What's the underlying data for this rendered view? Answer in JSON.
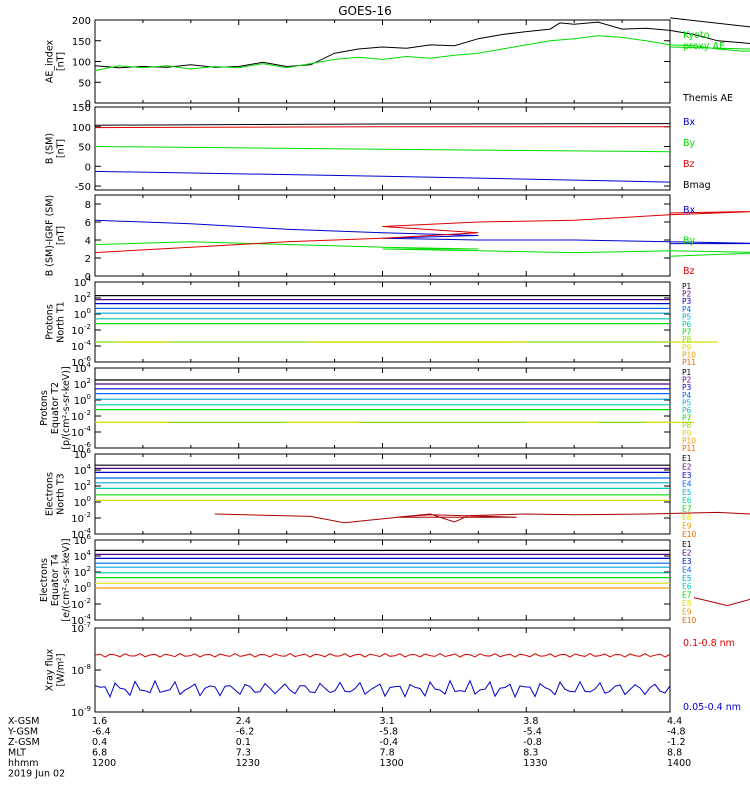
{
  "title": "GOES-16",
  "colors": {
    "black": "#000000",
    "blue": "#0000cc",
    "green": "#00dd00",
    "red": "#dd0000",
    "P": [
      "#000000",
      "#550088",
      "#0000cc",
      "#0066ff",
      "#00aadd",
      "#00ccaa",
      "#00dd00",
      "#88dd00",
      "#dddd00",
      "#ee9900",
      "#ee6600",
      "#dd0000",
      "#aa0000"
    ],
    "E": [
      "#000000",
      "#550088",
      "#0000cc",
      "#0066ff",
      "#00aadd",
      "#00ccaa",
      "#00dd00",
      "#dddd00",
      "#ee9900",
      "#ee6600",
      "#dd0000",
      "#aa0000"
    ]
  },
  "chart_data": [
    {
      "type": "line",
      "ylabel": "AE_index\n[nT]",
      "ylim": [
        0,
        200
      ],
      "yticks": [
        "0",
        "50",
        "100",
        "150",
        "200"
      ],
      "legend": [
        {
          "label": "Kyoto\nproxy AE",
          "color": "#00dd00"
        },
        {
          "label": "Themis AE",
          "color": "#000000"
        }
      ],
      "series": [
        {
          "name": "Themis AE",
          "color": "#000000",
          "x": [
            1200,
            1205,
            1210,
            1215,
            1220,
            1225,
            1230,
            1235,
            1240,
            1245,
            1250,
            1255,
            1300,
            1305,
            1310,
            1315,
            1320,
            1325,
            1330,
            1335,
            1337,
            1340,
            1345,
            1350,
            1355,
            1360,
            1365,
            1370,
            1375,
            1380,
            1385,
            1390,
            1395,
            1400
          ],
          "y": [
            90,
            85,
            88,
            86,
            92,
            86,
            88,
            98,
            88,
            92,
            120,
            130,
            135,
            132,
            140,
            138,
            155,
            165,
            172,
            178,
            193,
            190,
            195,
            178,
            180,
            175,
            165,
            150,
            145,
            140,
            140,
            138,
            160,
            205
          ]
        },
        {
          "name": "Kyoto proxy AE",
          "color": "#00dd00",
          "x": [
            1200,
            1205,
            1210,
            1215,
            1220,
            1225,
            1230,
            1235,
            1240,
            1245,
            1250,
            1255,
            1300,
            1305,
            1310,
            1315,
            1320,
            1325,
            1330,
            1335,
            1340,
            1345,
            1350,
            1355,
            1360,
            1365,
            1370,
            1375,
            1380,
            1385,
            1390,
            1395,
            1400
          ],
          "y": [
            78,
            90,
            85,
            90,
            82,
            88,
            85,
            95,
            85,
            95,
            105,
            110,
            105,
            112,
            108,
            115,
            120,
            130,
            140,
            150,
            155,
            162,
            158,
            150,
            140,
            138,
            130,
            125,
            125,
            125,
            125,
            125,
            135
          ]
        }
      ]
    },
    {
      "type": "line",
      "ylabel": "B (SM)\n[nT]",
      "ylim": [
        -60,
        150
      ],
      "yticks": [
        "-50",
        "0",
        "50",
        "100",
        "150"
      ],
      "legend": [
        {
          "label": "Bx",
          "color": "#0000cc"
        },
        {
          "label": "By",
          "color": "#00dd00"
        },
        {
          "label": "Bz",
          "color": "#dd0000"
        },
        {
          "label": "Bmag",
          "color": "#000000"
        }
      ],
      "series": [
        {
          "name": "Bmag",
          "color": "#000000",
          "x": [
            1200,
            1300,
            1400
          ],
          "y": [
            104,
            107,
            108
          ]
        },
        {
          "name": "Bz",
          "color": "#dd0000",
          "x": [
            1200,
            1300,
            1400
          ],
          "y": [
            98,
            100,
            100
          ]
        },
        {
          "name": "By",
          "color": "#00dd00",
          "x": [
            1200,
            1300,
            1400
          ],
          "y": [
            50,
            43,
            37
          ]
        },
        {
          "name": "Bx",
          "color": "#0000cc",
          "x": [
            1200,
            1300,
            1400
          ],
          "y": [
            -13,
            -25,
            -40
          ]
        }
      ]
    },
    {
      "type": "line",
      "ylabel": "B (SM)-IGRF (SM)\n[nT]",
      "ylim": [
        0,
        9
      ],
      "yticks": [
        "0",
        "2",
        "4",
        "6",
        "8"
      ],
      "legend": [
        {
          "label": "Bx",
          "color": "#0000cc"
        },
        {
          "label": "By",
          "color": "#00dd00"
        },
        {
          "label": "Bz",
          "color": "#dd0000"
        }
      ],
      "series": [
        {
          "name": "Bx",
          "color": "#0000cc",
          "x": [
            1200,
            1220,
            1240,
            1260,
            1280,
            1300,
            1320,
            1340,
            1360,
            1380,
            1400
          ],
          "y": [
            6.2,
            5.8,
            5.2,
            4.8,
            4.5,
            4.2,
            4.0,
            4.0,
            3.8,
            3.6,
            3.6
          ]
        },
        {
          "name": "By",
          "color": "#00dd00",
          "x": [
            1200,
            1220,
            1240,
            1260,
            1280,
            1300,
            1320,
            1340,
            1360,
            1380,
            1400
          ],
          "y": [
            3.5,
            3.8,
            3.5,
            3.2,
            3.0,
            3.0,
            2.8,
            2.6,
            2.8,
            2.6,
            2.2
          ]
        },
        {
          "name": "Bz",
          "color": "#dd0000",
          "x": [
            1200,
            1220,
            1240,
            1260,
            1280,
            1300,
            1320,
            1340,
            1360,
            1380,
            1400
          ],
          "y": [
            2.6,
            3.2,
            3.8,
            4.2,
            4.8,
            5.5,
            6.0,
            6.2,
            6.8,
            7.2,
            7.0
          ]
        }
      ]
    },
    {
      "type": "line",
      "log": true,
      "ylabel": "Protons\nNorth T1",
      "ylim": [
        -6,
        4
      ],
      "ytick_exps": [
        -6,
        -4,
        -2,
        0,
        2,
        4
      ],
      "channels": [
        "P1",
        "P2",
        "P3",
        "P4",
        "P5",
        "P6",
        "P7",
        "P8",
        "P9",
        "P10",
        "P11"
      ],
      "levels": [
        2.3,
        1.8,
        1.3,
        0.7,
        0.1,
        -0.6,
        -1.2,
        -3.5,
        -9,
        -9,
        -9
      ],
      "p8_segments": [
        [
          1205,
          1215
        ],
        [
          1245,
          1285
        ],
        [
          1310,
          1330
        ],
        [
          1360,
          1370
        ]
      ]
    },
    {
      "type": "line",
      "log": true,
      "ylabel": "Protons\nEquator T2\n[p/(cm²-s-sr-keV)]",
      "ylim": [
        -6,
        4
      ],
      "ytick_exps": [
        -6,
        -4,
        -2,
        0,
        2,
        4
      ],
      "channels": [
        "P1",
        "P2",
        "P3",
        "P4",
        "P5",
        "P6",
        "P7",
        "P8",
        "P9",
        "P10",
        "P11"
      ],
      "levels": [
        2.5,
        2.0,
        1.4,
        0.8,
        0.1,
        -0.6,
        -1.2,
        -2.8,
        -9,
        -9,
        -9
      ],
      "p8_segments": [
        [
          1200,
          1215
        ],
        [
          1240,
          1255
        ],
        [
          1260,
          1300
        ],
        [
          1330,
          1345
        ],
        [
          1355,
          1365
        ]
      ]
    },
    {
      "type": "line",
      "log": true,
      "ylabel": "Electrons\nNorth T3",
      "ylim": [
        -4,
        6
      ],
      "ytick_exps": [
        -4,
        -2,
        0,
        2,
        4,
        6
      ],
      "channels": [
        "E1",
        "E2",
        "E3",
        "E4",
        "E5",
        "E6",
        "E7",
        "E8",
        "E9",
        "E10"
      ],
      "levels": [
        4.6,
        4.2,
        3.7,
        3.0,
        2.4,
        1.7,
        0.9,
        0.2,
        -9,
        -9
      ],
      "e9_curve": {
        "x": [
          1225,
          1245,
          1252,
          1265,
          1270,
          1288,
          1303,
          1310,
          1315,
          1318,
          1330,
          1340,
          1355,
          1370,
          1380,
          1395
        ],
        "y": [
          -1.5,
          -1.8,
          -2.6,
          -1.8,
          -1.6,
          -1.9,
          -1.9,
          -1.5,
          -2.5,
          -1.7,
          -1.5,
          -1.6,
          -1.5,
          -1.3,
          -1.6,
          -1.5
        ]
      }
    },
    {
      "type": "line",
      "log": true,
      "ylabel": "Electrons\nEquator T4\n[e/(cm²-s-sr-keV)]",
      "ylim": [
        -4,
        6
      ],
      "ytick_exps": [
        -4,
        -2,
        0,
        2,
        4,
        6
      ],
      "channels": [
        "E1",
        "E2",
        "E3",
        "E4",
        "E5",
        "E6",
        "E7",
        "E8",
        "E9",
        "E10"
      ],
      "levels": [
        4.7,
        4.2,
        3.7,
        3.1,
        2.6,
        1.9,
        1.3,
        0.6,
        0.0,
        -9
      ],
      "e9_curve": {
        "x": [
          1365,
          1372,
          1378,
          1385
        ],
        "y": [
          -1.2,
          -2.2,
          -1.2,
          -1.8
        ]
      }
    },
    {
      "type": "line",
      "log": true,
      "ylabel": "Xray flux\n[W/m²]",
      "ylim": [
        -9,
        -7
      ],
      "ytick_exps": [
        -9,
        -8,
        -7
      ],
      "legend": [
        {
          "label": "0.1-0.8 nm",
          "color": "#dd0000"
        },
        {
          "label": "0.05-0.4 nm",
          "color": "#0000cc"
        }
      ],
      "series": [
        {
          "name": "0.1-0.8 nm",
          "color": "#dd0000",
          "level": -7.65
        },
        {
          "name": "0.05-0.4 nm",
          "color": "#0000cc",
          "level": -8.45
        }
      ]
    }
  ],
  "footer": {
    "rows": [
      {
        "label": "X-GSM",
        "values": [
          "1.6",
          "2.4",
          "3.1",
          "3.8",
          "4.4"
        ]
      },
      {
        "label": "Y-GSM",
        "values": [
          "-6.4",
          "-6.2",
          "-5.8",
          "-5.4",
          "-4.8"
        ]
      },
      {
        "label": "Z-GSM",
        "values": [
          "0.4",
          "0.1",
          "-0.4",
          "-0.8",
          "-1.2"
        ]
      },
      {
        "label": "MLT",
        "values": [
          "6.8",
          "7.3",
          "7.8",
          "8.3",
          "8.8"
        ]
      },
      {
        "label": "hhmm",
        "values": [
          "1200",
          "1230",
          "1300",
          "1330",
          "1400"
        ]
      }
    ],
    "date": "2019 Jun 02"
  }
}
